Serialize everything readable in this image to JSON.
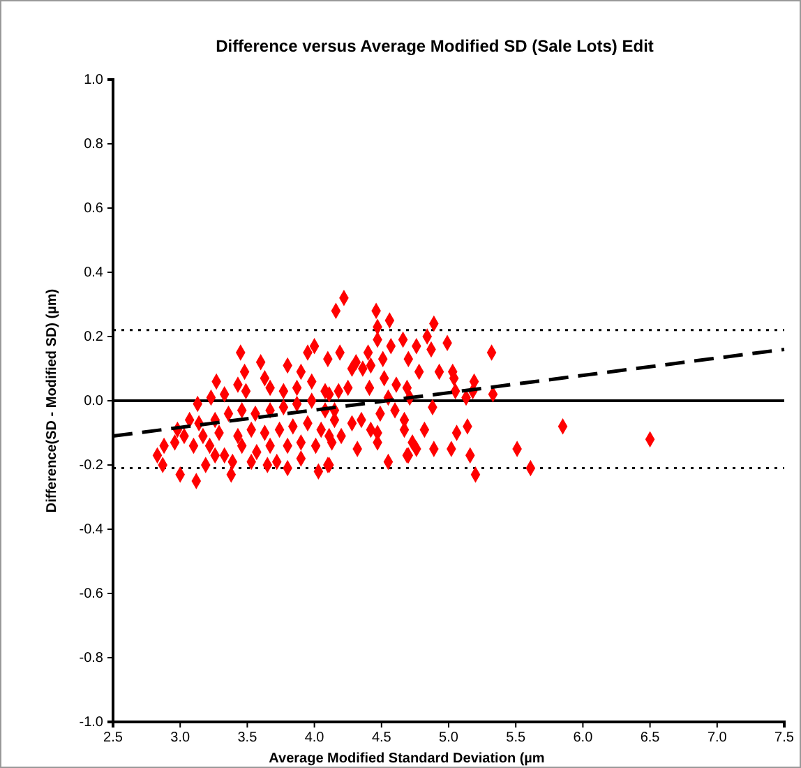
{
  "chart_data": {
    "type": "scatter",
    "title": "Difference versus Average Modified SD (Sale Lots) Edit",
    "xlabel": "Average Modified Standard Deviation (µm",
    "ylabel": "Difference(SD - Modified SD) (µm)",
    "xlim": [
      2.5,
      7.5
    ],
    "xticks": [
      2.5,
      {
        "value": 3,
        "label": "3.0"
      },
      3.5,
      {
        "value": 4,
        "label": "4.0"
      },
      4.5,
      {
        "value": 5,
        "label": "5.0"
      },
      5.5,
      {
        "value": 6,
        "label": "6.0"
      },
      6.5,
      {
        "value": 7,
        "label": "7.0"
      },
      7.5
    ],
    "ylim": [
      -1,
      1
    ],
    "yticks": [
      {
        "value": -1,
        "label": "-1.0"
      },
      -0.8,
      -0.6,
      -0.4,
      -0.2,
      {
        "value": 0,
        "label": "0.0"
      },
      0.2,
      0.4,
      0.6,
      0.8,
      {
        "value": 1,
        "label": "1.0"
      }
    ],
    "grid": false,
    "marker": "diamond",
    "ref_lines": [
      {
        "axis": "y",
        "value": 0,
        "color": "#000000",
        "line_style": "solid"
      },
      {
        "axis": "y",
        "value": 0.22,
        "color": "#000000",
        "line_style": "dotted"
      },
      {
        "axis": "y",
        "value": -0.21,
        "color": "#000000",
        "line_style": "dotted"
      }
    ],
    "series": [
      {
        "color": "#ff0000",
        "x": [
          5.85,
          6.5,
          4.22,
          4.16,
          4.46,
          4.56,
          4.89,
          4.84,
          4.99,
          5.32,
          4.66,
          4.47,
          4.87,
          4.76,
          4.7,
          4.78,
          4.93,
          5.03,
          5.04,
          5.19,
          5.33,
          5.13,
          5.18,
          5.05,
          4.88,
          5.14,
          5.06,
          5.16,
          5.2,
          5.51,
          5.61,
          5.02,
          4.89,
          4.82,
          4.76,
          4.7,
          4.73,
          4.67,
          4.67,
          4.6,
          4.55,
          4.69,
          4.71,
          4.61,
          4.52,
          4.41,
          4.36,
          4.42,
          4.51,
          4.31,
          4.28,
          4.4,
          4.47,
          4.57,
          4.19,
          4.1,
          4.25,
          4.18,
          4.11,
          4.15,
          4.28,
          4.35,
          4.42,
          4.47,
          4.47,
          4.32,
          4.2,
          4.13,
          4.55,
          4.69,
          4.1,
          4.15,
          4.49,
          3.45,
          3.95,
          4.0,
          3.6,
          3.48,
          3.27,
          3.8,
          3.9,
          3.63,
          3.43,
          3.13,
          3.23,
          3.33,
          3.49,
          3.67,
          3.77,
          3.87,
          3.98,
          4.08,
          3.07,
          2.98,
          3.14,
          3.26,
          3.36,
          3.46,
          3.56,
          3.67,
          3.77,
          3.87,
          3.98,
          4.08,
          3.03,
          3.17,
          3.29,
          3.43,
          3.53,
          3.63,
          3.74,
          3.84,
          3.95,
          4.05,
          2.88,
          2.96,
          3.1,
          3.22,
          3.33,
          3.46,
          3.57,
          3.67,
          3.8,
          3.9,
          4.01,
          4.11,
          2.83,
          2.87,
          3.0,
          3.12,
          3.19,
          3.38,
          3.65,
          3.8,
          3.9,
          4.03,
          4.11,
          3.26,
          3.39,
          3.53,
          3.72
        ],
        "values": [
          -0.08,
          -0.12,
          0.32,
          0.28,
          0.28,
          0.25,
          0.24,
          0.2,
          0.18,
          0.15,
          0.19,
          0.23,
          0.16,
          0.17,
          0.13,
          0.09,
          0.09,
          0.09,
          0.07,
          0.06,
          0.02,
          0.01,
          0.03,
          0.03,
          -0.02,
          -0.08,
          -0.1,
          -0.17,
          -0.23,
          -0.15,
          -0.21,
          -0.15,
          -0.15,
          -0.09,
          -0.15,
          -0.17,
          -0.13,
          -0.09,
          -0.06,
          -0.03,
          0.01,
          0.04,
          0.01,
          0.05,
          0.07,
          0.04,
          0.1,
          0.11,
          0.13,
          0.12,
          0.1,
          0.15,
          0.19,
          0.17,
          0.15,
          0.13,
          0.04,
          0.03,
          0.02,
          -0.06,
          -0.07,
          -0.06,
          -0.09,
          -0.1,
          -0.13,
          -0.15,
          -0.11,
          -0.13,
          -0.19,
          -0.17,
          -0.2,
          -0.03,
          -0.04,
          0.15,
          0.15,
          0.17,
          0.12,
          0.09,
          0.06,
          0.11,
          0.09,
          0.07,
          0.05,
          -0.01,
          0.01,
          0.02,
          0.03,
          0.04,
          0.03,
          0.04,
          0.06,
          0.03,
          -0.06,
          -0.09,
          -0.07,
          -0.06,
          -0.04,
          -0.03,
          -0.04,
          -0.03,
          -0.02,
          -0.01,
          0.0,
          -0.03,
          -0.11,
          -0.11,
          -0.1,
          -0.11,
          -0.09,
          -0.1,
          -0.09,
          -0.08,
          -0.07,
          -0.09,
          -0.14,
          -0.13,
          -0.14,
          -0.14,
          -0.17,
          -0.14,
          -0.16,
          -0.14,
          -0.14,
          -0.13,
          -0.14,
          -0.11,
          -0.17,
          -0.2,
          -0.23,
          -0.25,
          -0.2,
          -0.23,
          -0.2,
          -0.21,
          -0.18,
          -0.22,
          -0.2,
          -0.17,
          -0.19,
          -0.19,
          -0.19
        ]
      },
      {
        "type": "line",
        "color": "#000000",
        "line_style": "dashed",
        "marker": "none",
        "x": [
          2.5,
          7.5
        ],
        "values": [
          -0.11,
          0.16
        ]
      }
    ]
  }
}
